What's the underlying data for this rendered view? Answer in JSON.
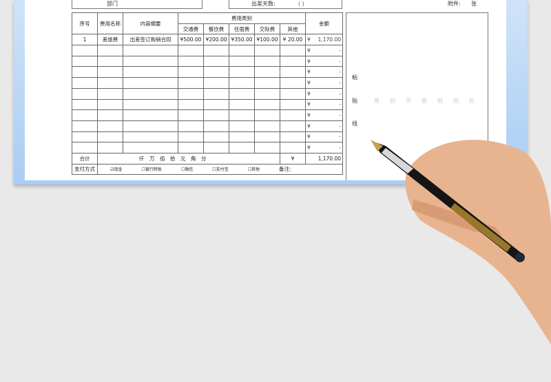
{
  "header": {
    "dept_label": "部门",
    "days_label": "出差天数:",
    "days_value": "(    )",
    "attach_label": "附件:",
    "attach_unit": "张"
  },
  "table": {
    "headers": {
      "no": "序号",
      "name": "费用名称",
      "desc": "内容摘要",
      "category": "费用类别",
      "amount": "金额",
      "cats": [
        "交通费",
        "餐饮费",
        "住宿费",
        "交际费",
        "其他"
      ]
    },
    "rows": [
      {
        "no": "1",
        "name": "差旅费",
        "desc": "出差签订购销合同",
        "cats": [
          "¥500.00",
          "¥200.00",
          "¥350.00",
          "¥100.00",
          "¥  20.00"
        ],
        "amount": "1,170.00"
      }
    ],
    "empty_amount": "-",
    "currency": "¥",
    "total": {
      "label": "合计",
      "units": "仟　万　佰　拾　元　角　分",
      "currency": "¥",
      "value": "1,170.00"
    },
    "payment": {
      "label": "支付方式",
      "options": [
        {
          "label": "现金",
          "checked": true
        },
        {
          "label": "银行转账",
          "checked": false
        },
        {
          "label": "微信",
          "checked": false
        },
        {
          "label": "支付宝",
          "checked": false
        },
        {
          "label": "其他",
          "checked": false
        }
      ],
      "note_label": "备注:"
    }
  },
  "paste_area": {
    "vertical": [
      "粘",
      "贴",
      "线"
    ],
    "hint": "原始凭据粘贴处"
  }
}
